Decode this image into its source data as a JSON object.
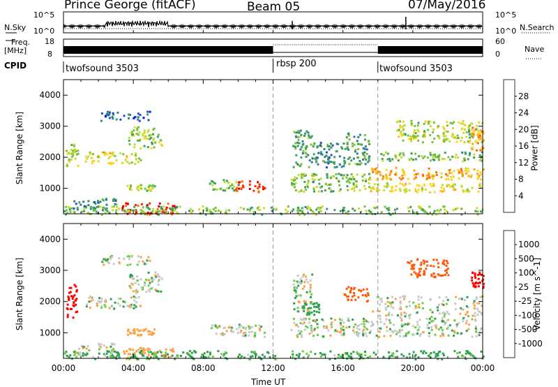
{
  "header": {
    "station": "Prince George (fitACF)",
    "beam": "Beam 05",
    "date": "07/May/2016"
  },
  "strips": {
    "nsky_label": "N.Sky",
    "nsearch_label": "N.Search",
    "noise_ticks": [
      "10^5",
      "10^0"
    ],
    "freq_label_1": "Freq.",
    "freq_label_2": "[MHz]",
    "freq_ticks": [
      "18",
      "8"
    ],
    "nave_label": "Nave",
    "nave_ticks": [
      "60",
      "0"
    ],
    "cpid_label": "CPID",
    "cpid_segments": [
      {
        "name": "twofsound 3503",
        "start_hour": 0,
        "end_hour": 12
      },
      {
        "name": "rbsp 200",
        "start_hour": 12,
        "end_hour": 18
      },
      {
        "name": "twofsound 3503",
        "start_hour": 18,
        "end_hour": 24
      }
    ]
  },
  "axes": {
    "ylabel": "Slant Range [km]",
    "xlabel": "Time UT",
    "xticks": [
      "00:00",
      "04:00",
      "08:00",
      "12:00",
      "16:00",
      "20:00",
      "00:00"
    ],
    "yticks": [
      "1000",
      "2000",
      "3000",
      "4000"
    ]
  },
  "colorbars": {
    "power": {
      "label": "Power [dB]",
      "ticks": [
        "28",
        "24",
        "20",
        "16",
        "12",
        "8",
        "4"
      ],
      "colors": [
        "#0019ff",
        "#1f50c8",
        "#2f7f8f",
        "#3fa05f",
        "#78c23a",
        "#c8dc28",
        "#ffd21e",
        "#ffa014",
        "#ff6a0a",
        "#ff2a00",
        "#e00000"
      ]
    },
    "velocity": {
      "label": "Velocity [m s^-1]",
      "ticks": [
        "1000",
        "500",
        "100",
        "25",
        "-25",
        "-100",
        "-500",
        "-1000"
      ],
      "colors": [
        "#2050c0",
        "#3c8c8c",
        "#30a050",
        "#6ad040",
        "#c8c8c8",
        "#c8c8c8",
        "#ffa040",
        "#ff7f14",
        "#ff5a0a",
        "#ff0000"
      ]
    }
  },
  "chart_data": [
    {
      "type": "heatmap",
      "title": "",
      "quantity": "Power",
      "units": "dB",
      "x_range_hours": [
        0,
        24
      ],
      "y_range_km": [
        180,
        4500
      ],
      "color_range": [
        0,
        30
      ],
      "clusters": [
        {
          "t0": 0.1,
          "t1": 0.8,
          "r0": 1700,
          "r1": 2500,
          "value": 14
        },
        {
          "t0": 1.2,
          "t1": 4.4,
          "r0": 1800,
          "r1": 2200,
          "value": 16
        },
        {
          "t0": 3.7,
          "t1": 5.6,
          "r0": 2300,
          "r1": 3000,
          "value": 14
        },
        {
          "t0": 2.1,
          "t1": 4.9,
          "r0": 3200,
          "r1": 3500,
          "value": 6
        },
        {
          "t0": 3.6,
          "t1": 5.2,
          "r0": 950,
          "r1": 1150,
          "value": 14
        },
        {
          "t0": 0.5,
          "t1": 3.0,
          "r0": 300,
          "r1": 700,
          "value": 8
        },
        {
          "t0": 3.3,
          "t1": 6.4,
          "r0": 180,
          "r1": 550,
          "value": 27
        },
        {
          "t0": 8.3,
          "t1": 10.0,
          "r0": 950,
          "r1": 1300,
          "value": 12
        },
        {
          "t0": 9.8,
          "t1": 11.5,
          "r0": 900,
          "r1": 1300,
          "value": 26
        },
        {
          "t0": 13.1,
          "t1": 14.2,
          "r0": 1700,
          "r1": 2900,
          "value": 10
        },
        {
          "t0": 14.2,
          "t1": 16.0,
          "r0": 1700,
          "r1": 2500,
          "value": 8
        },
        {
          "t0": 13.0,
          "t1": 17.5,
          "r0": 900,
          "r1": 1500,
          "value": 12
        },
        {
          "t0": 16.0,
          "t1": 17.5,
          "r0": 1800,
          "r1": 2800,
          "value": 10
        },
        {
          "t0": 17.5,
          "t1": 24.0,
          "r0": 1300,
          "r1": 1700,
          "value": 20
        },
        {
          "t0": 17.5,
          "t1": 24.0,
          "r0": 900,
          "r1": 1200,
          "value": 16
        },
        {
          "t0": 18.0,
          "t1": 24.0,
          "r0": 1900,
          "r1": 2200,
          "value": 12
        },
        {
          "t0": 19.0,
          "t1": 24.0,
          "r0": 2500,
          "r1": 3200,
          "value": 14
        },
        {
          "t0": 23.3,
          "t1": 24.0,
          "r0": 2200,
          "r1": 3000,
          "value": 20
        },
        {
          "t0": 0.0,
          "t1": 24.0,
          "r0": 180,
          "r1": 450,
          "value": 12
        }
      ]
    },
    {
      "type": "heatmap",
      "title": "",
      "quantity": "Velocity",
      "units": "m s^-1",
      "x_range_hours": [
        0,
        24
      ],
      "y_range_km": [
        180,
        4500
      ],
      "color_range": [
        -1000,
        1000
      ],
      "clusters": [
        {
          "t0": 0.1,
          "t1": 0.8,
          "r0": 1500,
          "r1": 2600,
          "value": -900
        },
        {
          "t0": 1.2,
          "t1": 4.4,
          "r0": 1800,
          "r1": 2200,
          "value": 0
        },
        {
          "t0": 3.7,
          "t1": 5.6,
          "r0": 2300,
          "r1": 3000,
          "value": 0
        },
        {
          "t0": 2.1,
          "t1": 4.9,
          "r0": 3200,
          "r1": 3500,
          "value": 0
        },
        {
          "t0": 3.6,
          "t1": 5.2,
          "r0": 950,
          "r1": 1150,
          "value": -200
        },
        {
          "t0": 0.5,
          "t1": 3.0,
          "r0": 300,
          "r1": 700,
          "value": 0
        },
        {
          "t0": 3.3,
          "t1": 6.4,
          "r0": 180,
          "r1": 550,
          "value": -200
        },
        {
          "t0": 8.3,
          "t1": 11.5,
          "r0": 900,
          "r1": 1300,
          "value": 0
        },
        {
          "t0": 13.1,
          "t1": 14.2,
          "r0": 1700,
          "r1": 2900,
          "value": 0
        },
        {
          "t0": 13.5,
          "t1": 14.8,
          "r0": 1600,
          "r1": 2000,
          "value": 150
        },
        {
          "t0": 16.0,
          "t1": 17.5,
          "r0": 2000,
          "r1": 2500,
          "value": -500
        },
        {
          "t0": 13.0,
          "t1": 17.5,
          "r0": 900,
          "r1": 1500,
          "value": 0
        },
        {
          "t0": 17.5,
          "t1": 24.0,
          "r0": 900,
          "r1": 2200,
          "value": 0
        },
        {
          "t0": 19.5,
          "t1": 22.0,
          "r0": 2800,
          "r1": 3400,
          "value": -500
        },
        {
          "t0": 23.3,
          "t1": 24.0,
          "r0": 2400,
          "r1": 3000,
          "value": -900
        },
        {
          "t0": 0.0,
          "t1": 24.0,
          "r0": 180,
          "r1": 450,
          "value": 120
        }
      ]
    }
  ]
}
